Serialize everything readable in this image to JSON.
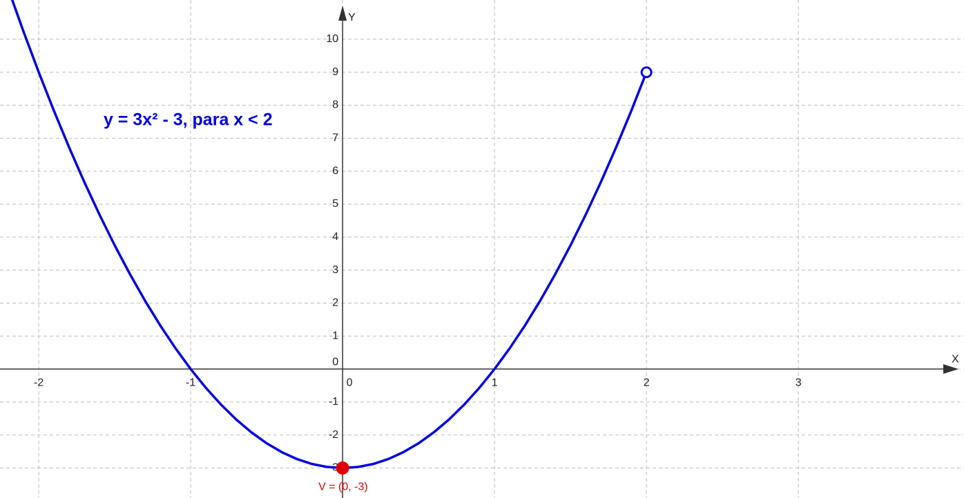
{
  "chart_data": {
    "type": "line",
    "annotation": "y = 3x² - 3, para x < 2",
    "x_label": "X",
    "y_label": "Y",
    "x": [
      -2.2,
      -2.1,
      -2.0,
      -1.9,
      -1.8,
      -1.7,
      -1.6,
      -1.5,
      -1.4,
      -1.3,
      -1.2,
      -1.1,
      -1.0,
      -0.9,
      -0.8,
      -0.7,
      -0.6,
      -0.5,
      -0.4,
      -0.3,
      -0.2,
      -0.1,
      0,
      0.1,
      0.2,
      0.3,
      0.4,
      0.5,
      0.6,
      0.7,
      0.8,
      0.9,
      1.0,
      1.1,
      1.2,
      1.3,
      1.4,
      1.5,
      1.6,
      1.7,
      1.8,
      1.9,
      2.0
    ],
    "series": [
      {
        "name": "y = 3x² - 3",
        "color": "#0000e0",
        "values": [
          11.52,
          10.23,
          9,
          7.83,
          6.72,
          5.67,
          4.68,
          3.75,
          2.88,
          2.07,
          1.32,
          0.63,
          0,
          -0.57,
          -1.08,
          -1.53,
          -1.92,
          -2.25,
          -2.52,
          -2.73,
          -2.88,
          -2.97,
          -3,
          -2.97,
          -2.88,
          -2.73,
          -2.52,
          -2.25,
          -1.92,
          -1.53,
          -1.08,
          -0.57,
          0,
          0.63,
          1.32,
          2.07,
          2.88,
          3.75,
          4.68,
          5.67,
          6.72,
          7.83,
          9
        ]
      }
    ],
    "points": [
      {
        "label": "V = (0, -3)",
        "x": 0,
        "y": -3,
        "color": "#e00000",
        "filled": true
      },
      {
        "x": 2,
        "y": 9,
        "color": "#0000e0",
        "filled": false
      }
    ],
    "xlim": [
      -2.255,
      4.09
    ],
    "ylim": [
      -3.91,
      11.19
    ],
    "xticks": [
      -2,
      -1,
      0,
      1,
      2,
      3
    ],
    "yticks": [
      -3,
      -2,
      -1,
      0,
      1,
      2,
      3,
      4,
      5,
      6,
      7,
      8,
      9,
      10
    ],
    "grid": true
  }
}
